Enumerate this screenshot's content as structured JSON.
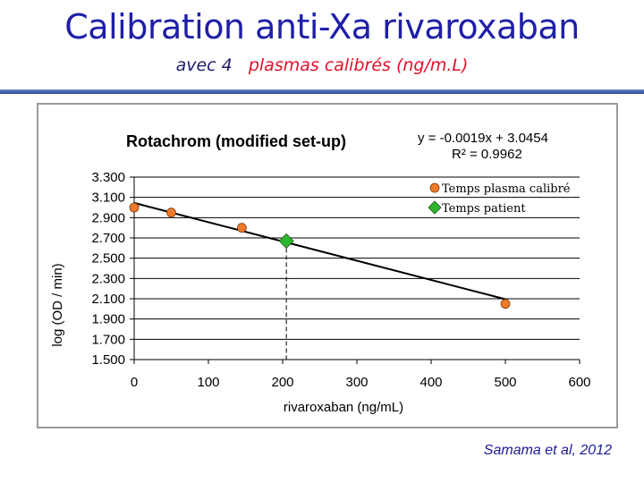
{
  "slide": {
    "title": "Calibration anti-Xa rivaroxaban",
    "subtitle_prefix": "avec 4",
    "subtitle_emphasis": "plasmas calibrés (ng/m.L)",
    "citation": "Samama et al, 2012"
  },
  "chart_data": {
    "type": "scatter",
    "title": "Rotachrom (modified set-up)",
    "xlabel": "rivaroxaban (ng/mL)",
    "ylabel": "log (OD / min)",
    "xlim": [
      0,
      600
    ],
    "ylim": [
      1.5,
      3.3
    ],
    "x_ticks": [
      "0",
      "100",
      "200",
      "300",
      "400",
      "500",
      "600"
    ],
    "y_ticks": [
      "3.300",
      "3.100",
      "2.900",
      "2.700",
      "2.500",
      "2.300",
      "2.100",
      "1.900",
      "1.700",
      "1.500"
    ],
    "grid": "horizontal",
    "trendline": {
      "slope": -0.0019,
      "intercept": 3.0454,
      "x_range": [
        0,
        500
      ]
    },
    "equation_text": "y = -0.0019x + 3.0454",
    "r2_text": "R² = 0.9962",
    "series": [
      {
        "name": "Temps plasma calibré",
        "marker": "circle",
        "color": "#f07a2a",
        "x": [
          0,
          50,
          145,
          500
        ],
        "y": [
          3.0,
          2.95,
          2.8,
          2.05
        ]
      },
      {
        "name": "Temps patient",
        "marker": "diamond",
        "color": "#2db52d",
        "x": [
          205
        ],
        "y": [
          2.67
        ]
      }
    ],
    "dropline": {
      "x": 205,
      "y": 2.67
    }
  }
}
